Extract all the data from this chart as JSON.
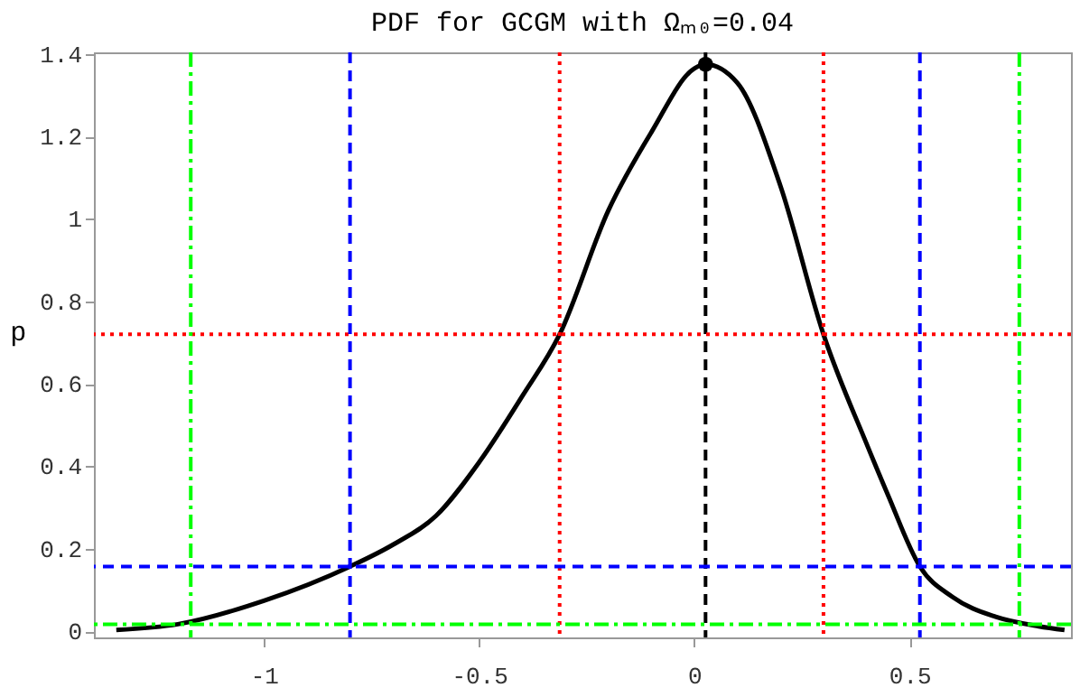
{
  "chart_data": {
    "type": "line",
    "title": "PDF for GCGM with Ωₘ₀=0.04",
    "ylabel": "p",
    "xlim": [
      -1.395,
      0.875
    ],
    "ylim": [
      -0.015,
      1.404
    ],
    "xticks": [
      -1,
      -0.5,
      0,
      0.5
    ],
    "yticks": [
      0,
      0.2,
      0.4,
      0.6,
      0.8,
      1,
      1.2,
      1.4
    ],
    "grid": false,
    "series": [
      {
        "color": "#000000",
        "line_style": "solid",
        "x": [
          -1.343,
          -1.2,
          -1.0,
          -0.8,
          -0.7,
          -0.6,
          -0.5,
          -0.4,
          -0.313,
          -0.2,
          -0.1,
          0.0,
          0.026,
          0.1,
          0.2,
          0.3,
          0.4,
          0.45,
          0.524,
          0.6,
          0.7,
          0.8,
          0.86
        ],
        "values": [
          0.003,
          0.017,
          0.074,
          0.157,
          0.21,
          0.28,
          0.41,
          0.57,
          0.72,
          1.02,
          1.21,
          1.365,
          1.375,
          1.33,
          1.08,
          0.72,
          0.455,
          0.33,
          0.157,
          0.083,
          0.035,
          0.012,
          0.003
        ]
      },
      {
        "type": "scatter",
        "color": "#000000",
        "marker": "circle",
        "x": [
          0.026
        ],
        "values": [
          1.375
        ]
      }
    ],
    "ref_lines": [
      {
        "axis": "x",
        "value": 0.026,
        "color": "#000000",
        "line_style": "dashed"
      },
      {
        "axis": "x",
        "value": -0.313,
        "color": "#ff0000",
        "line_style": "dotted"
      },
      {
        "axis": "x",
        "value": 0.3,
        "color": "#ff0000",
        "line_style": "dotted"
      },
      {
        "axis": "y",
        "value": 0.72,
        "color": "#ff0000",
        "line_style": "dotted"
      },
      {
        "axis": "x",
        "value": -0.8,
        "color": "#0000ff",
        "line_style": "dashed"
      },
      {
        "axis": "x",
        "value": 0.524,
        "color": "#0000ff",
        "line_style": "dashed"
      },
      {
        "axis": "y",
        "value": 0.157,
        "color": "#0000ff",
        "line_style": "dashed"
      },
      {
        "axis": "x",
        "value": -1.17,
        "color": "#00ff00",
        "line_style": "dashdot"
      },
      {
        "axis": "x",
        "value": 0.755,
        "color": "#00ff00",
        "line_style": "dashdot"
      },
      {
        "axis": "y",
        "value": 0.017,
        "color": "#00ff00",
        "line_style": "dashdot"
      }
    ]
  }
}
